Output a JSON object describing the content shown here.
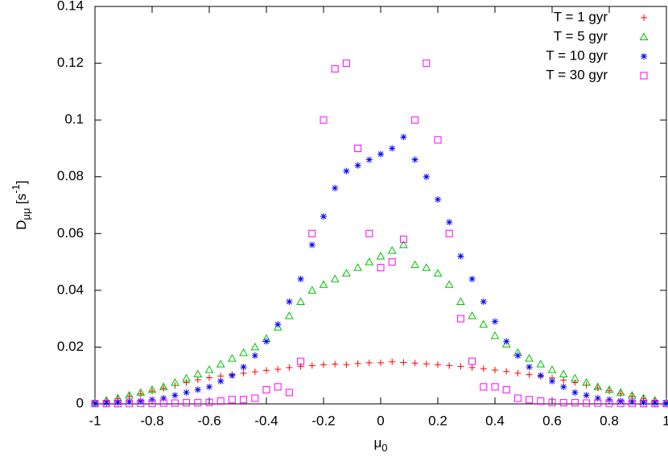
{
  "chart_data": {
    "type": "scatter",
    "x_label": {
      "base": "μ",
      "sub": "0"
    },
    "y_label": {
      "base": "D",
      "sub": "μμ",
      "mid": " [s",
      "sup": "-1",
      "end": "]"
    },
    "x": [
      -1,
      -0.96,
      -0.92,
      -0.88,
      -0.84,
      -0.8,
      -0.76,
      -0.72,
      -0.68,
      -0.64,
      -0.6,
      -0.56,
      -0.52,
      -0.48,
      -0.44,
      -0.4,
      -0.36,
      -0.32,
      -0.28,
      -0.24,
      -0.2,
      -0.16,
      -0.12,
      -0.08,
      -0.04,
      0,
      0.04,
      0.08,
      0.12,
      0.16,
      0.2,
      0.24,
      0.28,
      0.32,
      0.36,
      0.4,
      0.44,
      0.48,
      0.52,
      0.56,
      0.6,
      0.64,
      0.68,
      0.72,
      0.76,
      0.8,
      0.84,
      0.88,
      0.92,
      0.96,
      1
    ],
    "series": [
      {
        "name": "T = 1 gyr",
        "color": "#ff0000",
        "marker": "plus",
        "values": [
          0.0005,
          0.001,
          0.0018,
          0.0027,
          0.0035,
          0.0045,
          0.0055,
          0.0065,
          0.0075,
          0.0085,
          0.0092,
          0.0098,
          0.0103,
          0.0108,
          0.0113,
          0.0118,
          0.0122,
          0.0128,
          0.0132,
          0.0135,
          0.0138,
          0.014,
          0.0138,
          0.0142,
          0.0145,
          0.0145,
          0.0148,
          0.0146,
          0.0144,
          0.0141,
          0.0138,
          0.0135,
          0.0132,
          0.0128,
          0.0124,
          0.0119,
          0.0114,
          0.0108,
          0.0103,
          0.0097,
          0.0091,
          0.0084,
          0.0075,
          0.0066,
          0.0056,
          0.0046,
          0.0036,
          0.0027,
          0.0018,
          0.001,
          0.0005
        ]
      },
      {
        "name": "T = 5 gyr",
        "color": "#00c000",
        "marker": "triangle",
        "values": [
          0.0005,
          0.0012,
          0.002,
          0.003,
          0.004,
          0.005,
          0.006,
          0.0075,
          0.009,
          0.0105,
          0.012,
          0.014,
          0.016,
          0.018,
          0.02,
          0.023,
          0.027,
          0.031,
          0.036,
          0.04,
          0.042,
          0.044,
          0.046,
          0.048,
          0.05,
          0.052,
          0.054,
          0.056,
          0.049,
          0.048,
          0.046,
          0.042,
          0.036,
          0.031,
          0.028,
          0.024,
          0.021,
          0.018,
          0.016,
          0.014,
          0.012,
          0.0105,
          0.009,
          0.0075,
          0.006,
          0.005,
          0.004,
          0.003,
          0.002,
          0.0012,
          0.0005
        ]
      },
      {
        "name": "T = 10 gyr",
        "color": "#0000ff",
        "marker": "asterisk",
        "values": [
          0.0002,
          0.0003,
          0.0005,
          0.0008,
          0.001,
          0.0015,
          0.002,
          0.003,
          0.004,
          0.005,
          0.006,
          0.008,
          0.01,
          0.013,
          0.017,
          0.022,
          0.028,
          0.036,
          0.044,
          0.056,
          0.066,
          0.076,
          0.082,
          0.084,
          0.086,
          0.088,
          0.09,
          0.094,
          0.086,
          0.08,
          0.072,
          0.064,
          0.052,
          0.044,
          0.036,
          0.029,
          0.022,
          0.017,
          0.013,
          0.01,
          0.008,
          0.006,
          0.004,
          0.003,
          0.002,
          0.0015,
          0.001,
          0.0008,
          0.0005,
          0.0003,
          0.0002
        ]
      },
      {
        "name": "T = 30 gyr",
        "color": "#ff00ff",
        "marker": "square",
        "values": [
          0.0001,
          0.0001,
          0.0001,
          0.0002,
          0.0002,
          0.0002,
          0.0003,
          0.0003,
          0.0004,
          0.0004,
          0.0005,
          0.001,
          0.0015,
          0.0015,
          0.002,
          0.005,
          0.006,
          0.004,
          0.015,
          0.06,
          0.1,
          0.118,
          0.12,
          0.09,
          0.06,
          0.048,
          0.05,
          0.058,
          0.1,
          0.12,
          0.093,
          0.06,
          0.03,
          0.015,
          0.006,
          0.006,
          0.005,
          0.002,
          0.0015,
          0.001,
          0.0005,
          0.0004,
          0.0004,
          0.0003,
          0.0003,
          0.0002,
          0.0002,
          0.0002,
          0.0001,
          0.0001,
          0.0001
        ]
      }
    ],
    "xlim": [
      -1,
      1
    ],
    "xticks": [
      -1,
      -0.8,
      -0.6,
      -0.4,
      -0.2,
      0,
      0.2,
      0.4,
      0.6,
      0.8,
      1
    ],
    "ylim": [
      0,
      0.14
    ],
    "yticks": [
      0,
      0.02,
      0.04,
      0.06,
      0.08,
      0.1,
      0.12,
      0.14
    ],
    "legend": "top-right"
  }
}
